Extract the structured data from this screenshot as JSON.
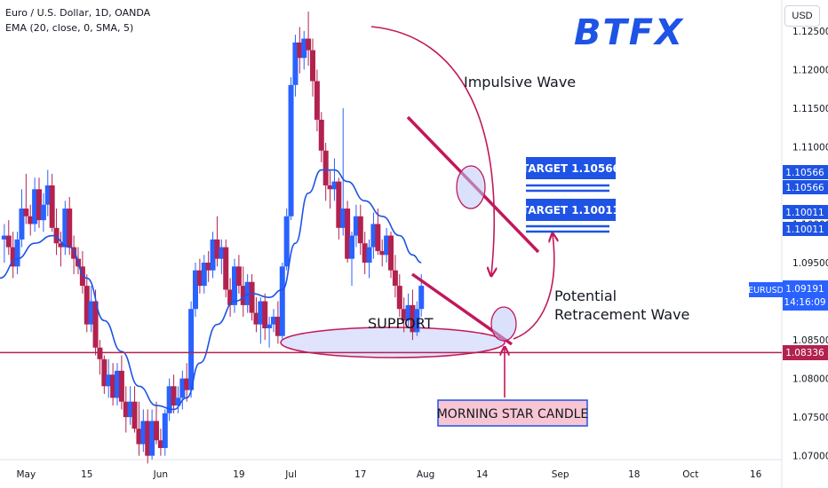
{
  "header": {
    "symbol_line": "Euro / U.S. Dollar, 1D, OANDA",
    "indicator_line": "EMA (20, close, 0, SMA, 5)"
  },
  "currency_button": "USD",
  "logo": "BTFX",
  "colors": {
    "up": "#2962ff",
    "down": "#b2224f",
    "ema": "#1e53e5",
    "annotation": "#c2185b",
    "target_bg": "#1e53e5",
    "support_line": "#b2224f",
    "support_ellipse_fill": "#dfe3fb",
    "morning_star_bg": "#f8c5d2",
    "logo": "#1e53e5"
  },
  "annotations": {
    "impulsive_wave": "Impulsive Wave",
    "potential_line1": "Potential",
    "potential_line2": "Retracement Wave",
    "support": "SUPPORT",
    "target1": "TARGET 1.10566",
    "target2": "TARGET 1.10011",
    "morning_star": "MORNING STAR CANDLE"
  },
  "price_labels": {
    "target1_a": "1.10566",
    "target1_b": "1.10566",
    "target2_a": "1.10011",
    "target2_b": "1.10011",
    "eurusd_symbol": "EURUSD",
    "eurusd_price": "1.09191",
    "eurusd_countdown": "14:16:09",
    "support_price": "1.08336"
  },
  "chart_data": {
    "type": "candlestick",
    "title": "Euro / U.S. Dollar, 1D, OANDA",
    "y_axis": {
      "min": 1.0695,
      "max": 1.129,
      "ticks": [
        "1.12500",
        "1.12000",
        "1.11500",
        "1.11000",
        "1.10500",
        "1.10000",
        "1.09500",
        "1.09000",
        "1.08500",
        "1.08000",
        "1.07500",
        "1.07000"
      ]
    },
    "x_axis": {
      "ticks": [
        {
          "label": "May",
          "day": 0
        },
        {
          "label": "15",
          "day": 14
        },
        {
          "label": "Jun",
          "day": 31
        },
        {
          "label": "19",
          "day": 49
        },
        {
          "label": "Jul",
          "day": 61
        },
        {
          "label": "17",
          "day": 77
        },
        {
          "label": "Aug",
          "day": 92
        },
        {
          "label": "14",
          "day": 105
        },
        {
          "label": "Sep",
          "day": 123
        },
        {
          "label": "18",
          "day": 140
        },
        {
          "label": "Oct",
          "day": 153
        },
        {
          "label": "16",
          "day": 168
        }
      ],
      "range_days": [
        -6,
        174
      ]
    },
    "support_level": 1.08336,
    "targets": [
      1.10566,
      1.10011
    ],
    "last_price": 1.09191,
    "ohlc": [
      [
        -5,
        1.098,
        1.1,
        1.095,
        1.0985
      ],
      [
        -4,
        1.0985,
        1.1005,
        1.096,
        1.097
      ],
      [
        -3,
        1.097,
        1.099,
        1.093,
        1.0945
      ],
      [
        -2,
        1.0945,
        1.099,
        1.0935,
        1.098
      ],
      [
        -1,
        1.098,
        1.1045,
        1.097,
        1.102
      ],
      [
        0,
        1.102,
        1.1065,
        1.1,
        1.101
      ],
      [
        1,
        1.101,
        1.1025,
        1.0985,
        1.1
      ],
      [
        2,
        1.1,
        1.106,
        1.099,
        1.1045
      ],
      [
        3,
        1.1045,
        1.106,
        1.0995,
        1.1005
      ],
      [
        4,
        1.1005,
        1.104,
        1.099,
        1.1025
      ],
      [
        5,
        1.1025,
        1.107,
        1.101,
        1.105
      ],
      [
        6,
        1.105,
        1.1065,
        1.099,
        1.0995
      ],
      [
        7,
        1.0995,
        1.102,
        1.096,
        1.0975
      ],
      [
        8,
        1.0975,
        1.099,
        1.0945,
        1.097
      ],
      [
        9,
        1.097,
        1.103,
        1.096,
        1.102
      ],
      [
        10,
        1.102,
        1.1035,
        1.096,
        1.097
      ],
      [
        11,
        1.097,
        1.0985,
        1.0935,
        1.0955
      ],
      [
        12,
        1.0955,
        1.097,
        1.0935,
        1.0945
      ],
      [
        13,
        1.0945,
        1.0965,
        1.091,
        1.092
      ],
      [
        14,
        1.092,
        1.0935,
        1.086,
        1.087
      ],
      [
        15,
        1.087,
        1.092,
        1.086,
        1.09
      ],
      [
        16,
        1.09,
        1.0915,
        1.083,
        1.084
      ],
      [
        17,
        1.084,
        1.085,
        1.0805,
        1.0825
      ],
      [
        18,
        1.0825,
        1.083,
        1.078,
        1.079
      ],
      [
        19,
        1.079,
        1.0825,
        1.0775,
        1.0805
      ],
      [
        20,
        1.0805,
        1.082,
        1.0765,
        1.0775
      ],
      [
        21,
        1.0775,
        1.082,
        1.0765,
        1.081
      ],
      [
        22,
        1.081,
        1.083,
        1.076,
        1.077
      ],
      [
        23,
        1.077,
        1.079,
        1.073,
        1.075
      ],
      [
        24,
        1.075,
        1.079,
        1.074,
        1.077
      ],
      [
        25,
        1.077,
        1.079,
        1.073,
        1.0735
      ],
      [
        26,
        1.0735,
        1.077,
        1.07,
        1.0715
      ],
      [
        27,
        1.0715,
        1.076,
        1.0705,
        1.0745
      ],
      [
        28,
        1.0745,
        1.076,
        1.069,
        1.07
      ],
      [
        29,
        1.07,
        1.076,
        1.0695,
        1.0745
      ],
      [
        30,
        1.0745,
        1.077,
        1.0715,
        1.072
      ],
      [
        31,
        1.072,
        1.0735,
        1.07,
        1.071
      ],
      [
        32,
        1.071,
        1.076,
        1.07,
        1.0755
      ],
      [
        33,
        1.0755,
        1.08,
        1.0745,
        1.079
      ],
      [
        34,
        1.079,
        1.0805,
        1.0755,
        1.0765
      ],
      [
        35,
        1.0765,
        1.079,
        1.0755,
        1.0775
      ],
      [
        36,
        1.0775,
        1.081,
        1.076,
        1.08
      ],
      [
        37,
        1.08,
        1.082,
        1.077,
        1.0785
      ],
      [
        38,
        1.0785,
        1.09,
        1.0775,
        1.089
      ],
      [
        39,
        1.089,
        1.095,
        1.088,
        1.094
      ],
      [
        40,
        1.094,
        1.0955,
        1.091,
        1.092
      ],
      [
        41,
        1.092,
        1.096,
        1.091,
        1.095
      ],
      [
        42,
        1.095,
        1.0965,
        1.0925,
        1.094
      ],
      [
        43,
        1.094,
        1.099,
        1.093,
        1.098
      ],
      [
        44,
        1.098,
        1.101,
        1.0945,
        1.0955
      ],
      [
        45,
        1.0955,
        1.098,
        1.0935,
        1.097
      ],
      [
        46,
        1.097,
        1.098,
        1.0905,
        1.0915
      ],
      [
        47,
        1.0915,
        1.093,
        1.088,
        1.0895
      ],
      [
        48,
        1.0895,
        1.0955,
        1.0885,
        1.0945
      ],
      [
        49,
        1.0945,
        1.096,
        1.091,
        1.092
      ],
      [
        50,
        1.092,
        1.0945,
        1.088,
        1.0895
      ],
      [
        51,
        1.0895,
        1.0935,
        1.0885,
        1.0925
      ],
      [
        52,
        1.0925,
        1.0935,
        1.0875,
        1.0885
      ],
      [
        53,
        1.0885,
        1.0905,
        1.086,
        1.087
      ],
      [
        54,
        1.087,
        1.0905,
        1.0845,
        1.09
      ],
      [
        55,
        1.09,
        1.091,
        1.085,
        1.0865
      ],
      [
        56,
        1.0865,
        1.088,
        1.084,
        1.087
      ],
      [
        57,
        1.087,
        1.089,
        1.086,
        1.088
      ],
      [
        58,
        1.088,
        1.09,
        1.0845,
        1.0855
      ],
      [
        59,
        1.0855,
        1.095,
        1.085,
        1.0945
      ],
      [
        60,
        1.0945,
        1.102,
        1.094,
        1.101
      ],
      [
        61,
        1.101,
        1.119,
        1.1005,
        1.118
      ],
      [
        62,
        1.118,
        1.1245,
        1.1165,
        1.1235
      ],
      [
        63,
        1.1235,
        1.1255,
        1.1195,
        1.1215
      ],
      [
        64,
        1.1215,
        1.125,
        1.12,
        1.124
      ],
      [
        65,
        1.124,
        1.1275,
        1.1205,
        1.1225
      ],
      [
        66,
        1.1225,
        1.124,
        1.1165,
        1.1185
      ],
      [
        67,
        1.1185,
        1.12,
        1.112,
        1.1135
      ],
      [
        68,
        1.1135,
        1.1145,
        1.108,
        1.1095
      ],
      [
        69,
        1.1095,
        1.1105,
        1.103,
        1.105
      ],
      [
        70,
        1.105,
        1.107,
        1.102,
        1.1045
      ],
      [
        71,
        1.1045,
        1.1085,
        1.103,
        1.1055
      ],
      [
        72,
        1.1055,
        1.106,
        1.098,
        1.0995
      ],
      [
        73,
        1.0995,
        1.115,
        1.0985,
        1.102
      ],
      [
        74,
        1.102,
        1.103,
        1.095,
        1.0955
      ],
      [
        75,
        1.0955,
        1.099,
        1.092,
        1.0985
      ],
      [
        76,
        1.0985,
        1.1025,
        1.097,
        1.101
      ],
      [
        77,
        1.101,
        1.1025,
        1.096,
        1.0975
      ],
      [
        78,
        1.0975,
        1.099,
        1.0935,
        1.095
      ],
      [
        79,
        1.095,
        1.098,
        1.093,
        1.097
      ],
      [
        80,
        1.097,
        1.1015,
        1.0955,
        1.1
      ],
      [
        81,
        1.1,
        1.102,
        1.096,
        1.0965
      ],
      [
        82,
        1.0965,
        1.098,
        1.0945,
        1.096
      ],
      [
        83,
        1.096,
        1.0995,
        1.095,
        1.0985
      ],
      [
        84,
        1.0985,
        1.099,
        1.093,
        1.094
      ],
      [
        85,
        1.094,
        1.096,
        1.0905,
        1.092
      ],
      [
        86,
        1.092,
        1.0935,
        1.088,
        1.089
      ],
      [
        87,
        1.089,
        1.0905,
        1.086,
        1.0875
      ],
      [
        88,
        1.0875,
        1.091,
        1.0865,
        1.0895
      ],
      [
        89,
        1.0895,
        1.0915,
        1.085,
        1.086
      ],
      [
        90,
        1.086,
        1.09,
        1.0855,
        1.089
      ],
      [
        91,
        1.089,
        1.0935,
        1.088,
        1.092
      ]
    ],
    "ema_series": {
      "name": "EMA (20, close, 0, SMA, 5)",
      "values": [
        [
          -6,
          1.093
        ],
        [
          -2,
          1.0955
        ],
        [
          2,
          1.0975
        ],
        [
          6,
          1.0985
        ],
        [
          10,
          1.097
        ],
        [
          14,
          1.093
        ],
        [
          18,
          1.0875
        ],
        [
          22,
          1.0835
        ],
        [
          26,
          1.079
        ],
        [
          30,
          1.0765
        ],
        [
          34,
          1.076
        ],
        [
          37,
          1.0775
        ],
        [
          40,
          1.082
        ],
        [
          44,
          1.087
        ],
        [
          48,
          1.09
        ],
        [
          52,
          1.091
        ],
        [
          56,
          1.0905
        ],
        [
          59,
          1.0915
        ],
        [
          62,
          1.0975
        ],
        [
          65,
          1.104
        ],
        [
          68,
          1.107
        ],
        [
          71,
          1.107
        ],
        [
          74,
          1.1055
        ],
        [
          78,
          1.103
        ],
        [
          82,
          1.101
        ],
        [
          86,
          1.0985
        ],
        [
          89,
          1.096
        ],
        [
          91,
          1.095
        ]
      ]
    }
  }
}
